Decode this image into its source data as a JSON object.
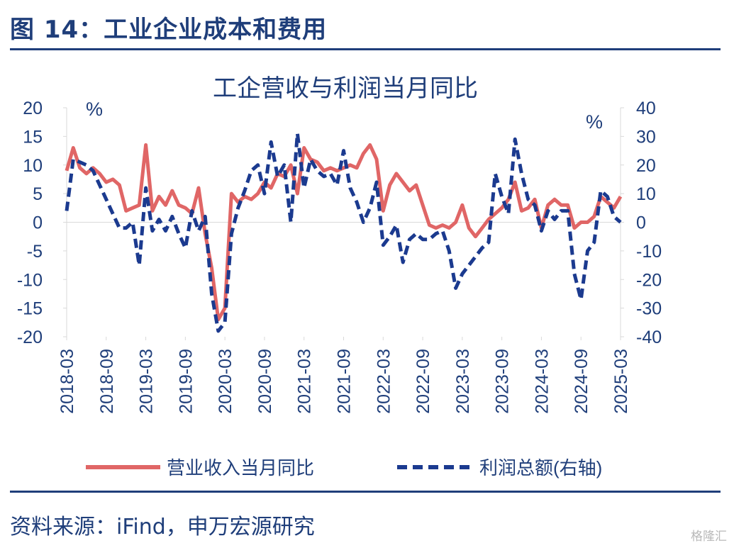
{
  "figure_title": "图 14：工业企业成本和费用",
  "source": "资料来源：iFind，申万宏源研究",
  "watermark": "格隆汇",
  "colors": {
    "navy": "#1f3e7a",
    "series_red": "#e06666",
    "series_blue": "#1b3a8f",
    "axis_text": "#1f3e7a"
  },
  "chart_data": {
    "type": "line",
    "title": "工企营收与利润当月同比",
    "ylabel_left": "%",
    "ylabel_right": "%",
    "ylim_left": [
      -20,
      20
    ],
    "ylim_right": [
      -40,
      40
    ],
    "yticks_left": [
      "20",
      "15",
      "10",
      "5",
      "0",
      "-5",
      "-10",
      "-15",
      "-20"
    ],
    "yticks_right": [
      "40",
      "30",
      "20",
      "10",
      "0",
      "-10",
      "-20",
      "-30",
      "-40"
    ],
    "xticks": [
      "2018-03",
      "2018-09",
      "2019-03",
      "2019-09",
      "2020-03",
      "2020-09",
      "2021-03",
      "2021-09",
      "2022-03",
      "2022-09",
      "2023-03",
      "2023-09",
      "2024-03",
      "2024-09",
      "2025-03"
    ],
    "grid": false,
    "legend_position": "bottom",
    "series": [
      {
        "name": "营业收入当月同比",
        "axis": "left",
        "style": "solid",
        "points": [
          [
            "2018-03",
            9
          ],
          [
            "2018-04",
            13
          ],
          [
            "2018-05",
            9.5
          ],
          [
            "2018-06",
            8.5
          ],
          [
            "2018-07",
            9.5
          ],
          [
            "2018-08",
            8.5
          ],
          [
            "2018-09",
            7
          ],
          [
            "2018-10",
            7.5
          ],
          [
            "2018-11",
            6.5
          ],
          [
            "2018-12",
            2
          ],
          [
            "2019-01",
            2.5
          ],
          [
            "2019-02",
            3
          ],
          [
            "2019-03",
            13.5
          ],
          [
            "2019-04",
            2
          ],
          [
            "2019-05",
            4.5
          ],
          [
            "2019-06",
            3
          ],
          [
            "2019-07",
            5.5
          ],
          [
            "2019-08",
            3
          ],
          [
            "2019-09",
            2.5
          ],
          [
            "2019-10",
            1.5
          ],
          [
            "2019-11",
            6
          ],
          [
            "2019-12",
            -2
          ],
          [
            "2020-01",
            -8
          ],
          [
            "2020-02",
            -17
          ],
          [
            "2020-03",
            -15
          ],
          [
            "2020-04",
            5
          ],
          [
            "2020-05",
            3.5
          ],
          [
            "2020-06",
            4.5
          ],
          [
            "2020-07",
            4
          ],
          [
            "2020-08",
            5
          ],
          [
            "2020-09",
            7
          ],
          [
            "2020-10",
            6
          ],
          [
            "2020-11",
            8.5
          ],
          [
            "2020-12",
            8
          ],
          [
            "2021-01",
            10
          ],
          [
            "2021-02",
            5
          ],
          [
            "2021-03",
            13
          ],
          [
            "2021-04",
            11
          ],
          [
            "2021-05",
            10.5
          ],
          [
            "2021-06",
            9
          ],
          [
            "2021-07",
            9.5
          ],
          [
            "2021-08",
            9
          ],
          [
            "2021-09",
            9.5
          ],
          [
            "2021-10",
            10
          ],
          [
            "2021-11",
            9.5
          ],
          [
            "2021-12",
            12
          ],
          [
            "2022-01",
            13.5
          ],
          [
            "2022-02",
            11
          ],
          [
            "2022-03",
            2
          ],
          [
            "2022-04",
            6.5
          ],
          [
            "2022-05",
            8.5
          ],
          [
            "2022-06",
            7
          ],
          [
            "2022-07",
            5.5
          ],
          [
            "2022-08",
            6.5
          ],
          [
            "2022-09",
            3
          ],
          [
            "2022-10",
            -0.5
          ],
          [
            "2022-11",
            -1
          ],
          [
            "2022-12",
            -0.5
          ],
          [
            "2023-01",
            -1
          ],
          [
            "2023-02",
            0
          ],
          [
            "2023-03",
            3
          ],
          [
            "2023-04",
            -1
          ],
          [
            "2023-05",
            -2.5
          ],
          [
            "2023-06",
            -1
          ],
          [
            "2023-07",
            0.5
          ],
          [
            "2023-08",
            1.5
          ],
          [
            "2023-09",
            2.5
          ],
          [
            "2023-10",
            4
          ],
          [
            "2023-11",
            7
          ],
          [
            "2023-12",
            2
          ],
          [
            "2024-01",
            2.5
          ],
          [
            "2024-02",
            4
          ],
          [
            "2024-03",
            -1
          ],
          [
            "2024-04",
            3
          ],
          [
            "2024-05",
            4
          ],
          [
            "2024-06",
            3
          ],
          [
            "2024-07",
            3
          ],
          [
            "2024-08",
            -1
          ],
          [
            "2024-09",
            0
          ],
          [
            "2024-10",
            0
          ],
          [
            "2024-11",
            1
          ],
          [
            "2024-12",
            4.5
          ],
          [
            "2025-01",
            3.5
          ],
          [
            "2025-02",
            2.5
          ],
          [
            "2025-03",
            4.5
          ]
        ]
      },
      {
        "name": "利润总额(右轴)",
        "axis": "right",
        "style": "dashed",
        "points": [
          [
            "2018-03",
            4
          ],
          [
            "2018-04",
            22
          ],
          [
            "2018-05",
            21
          ],
          [
            "2018-06",
            20
          ],
          [
            "2018-07",
            18
          ],
          [
            "2018-08",
            13
          ],
          [
            "2018-09",
            8
          ],
          [
            "2018-10",
            3
          ],
          [
            "2018-11",
            -2
          ],
          [
            "2018-12",
            -2
          ],
          [
            "2019-01",
            0
          ],
          [
            "2019-02",
            -15
          ],
          [
            "2019-03",
            12
          ],
          [
            "2019-04",
            -3
          ],
          [
            "2019-05",
            1
          ],
          [
            "2019-06",
            -3
          ],
          [
            "2019-07",
            2
          ],
          [
            "2019-08",
            -4
          ],
          [
            "2019-09",
            -9
          ],
          [
            "2019-10",
            4
          ],
          [
            "2019-11",
            -3
          ],
          [
            "2019-12",
            2
          ],
          [
            "2020-01",
            -25
          ],
          [
            "2020-02",
            -38
          ],
          [
            "2020-03",
            -35
          ],
          [
            "2020-04",
            -4
          ],
          [
            "2020-05",
            5
          ],
          [
            "2020-06",
            11
          ],
          [
            "2020-07",
            18
          ],
          [
            "2020-08",
            20
          ],
          [
            "2020-09",
            10
          ],
          [
            "2020-10",
            28
          ],
          [
            "2020-11",
            16
          ],
          [
            "2020-12",
            20
          ],
          [
            "2021-01",
            0
          ],
          [
            "2021-02",
            31
          ],
          [
            "2021-03",
            12
          ],
          [
            "2021-04",
            22
          ],
          [
            "2021-05",
            18
          ],
          [
            "2021-06",
            16
          ],
          [
            "2021-07",
            17
          ],
          [
            "2021-08",
            13
          ],
          [
            "2021-09",
            25
          ],
          [
            "2021-10",
            12
          ],
          [
            "2021-11",
            7
          ],
          [
            "2021-12",
            0
          ],
          [
            "2022-01",
            5
          ],
          [
            "2022-02",
            14
          ],
          [
            "2022-03",
            -8
          ],
          [
            "2022-04",
            -5
          ],
          [
            "2022-05",
            -1
          ],
          [
            "2022-06",
            -14
          ],
          [
            "2022-07",
            -6
          ],
          [
            "2022-08",
            -4
          ],
          [
            "2022-09",
            -6
          ],
          [
            "2022-10",
            -6
          ],
          [
            "2022-11",
            -4
          ],
          [
            "2022-12",
            -3
          ],
          [
            "2023-01",
            -10
          ],
          [
            "2023-02",
            -23
          ],
          [
            "2023-03",
            -18
          ],
          [
            "2023-04",
            -15
          ],
          [
            "2023-05",
            -12
          ],
          [
            "2023-06",
            -9
          ],
          [
            "2023-07",
            -7
          ],
          [
            "2023-08",
            17
          ],
          [
            "2023-09",
            9
          ],
          [
            "2023-10",
            3
          ],
          [
            "2023-11",
            29
          ],
          [
            "2023-12",
            17
          ],
          [
            "2024-01",
            8
          ],
          [
            "2024-02",
            6
          ],
          [
            "2024-03",
            -3
          ],
          [
            "2024-04",
            4
          ],
          [
            "2024-05",
            1
          ],
          [
            "2024-06",
            4
          ],
          [
            "2024-07",
            4
          ],
          [
            "2024-08",
            -18
          ],
          [
            "2024-09",
            -27
          ],
          [
            "2024-10",
            -10
          ],
          [
            "2024-11",
            -7
          ],
          [
            "2024-12",
            11
          ],
          [
            "2025-01",
            9
          ],
          [
            "2025-02",
            2
          ],
          [
            "2025-03",
            0
          ]
        ]
      }
    ]
  }
}
